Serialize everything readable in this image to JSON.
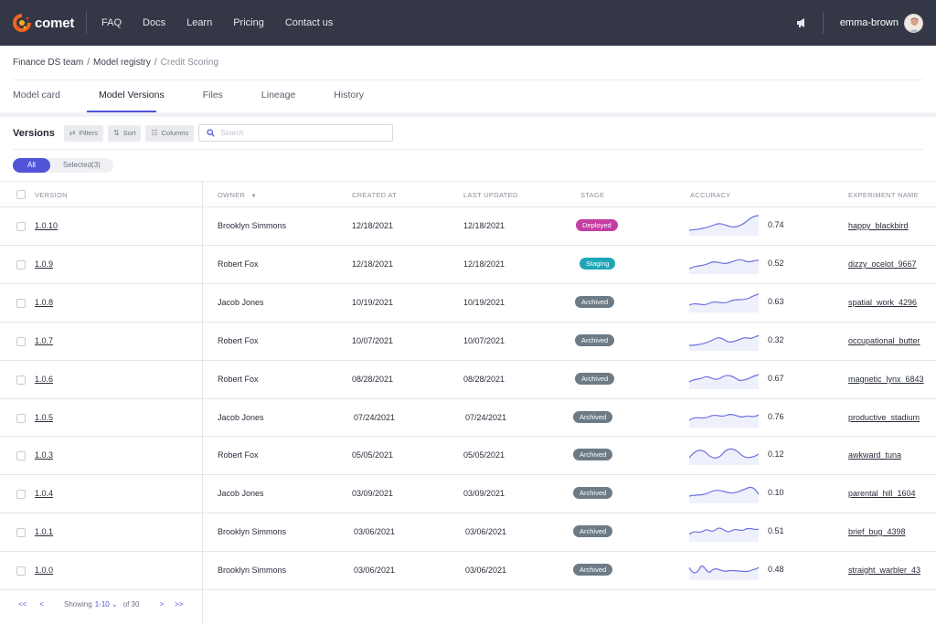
{
  "nav": {
    "logo": "comet",
    "links": [
      "FAQ",
      "Docs",
      "Learn",
      "Pricing",
      "Contact us"
    ],
    "username": "emma-brown"
  },
  "breadcrumb": {
    "team": "Finance DS team",
    "registry": "Model registry",
    "current": "Credit Scoring",
    "sep1": "/",
    "sep2": "/"
  },
  "tabs": [
    "Model card",
    "Model Versions",
    "Files",
    "Lineage",
    "History"
  ],
  "toolbar": {
    "title": "Versions",
    "filters": "Filters",
    "sort": "Sort",
    "columns": "Columns",
    "search_placeholder": "Search"
  },
  "pills": {
    "all": "All",
    "selected": "Selected(3)"
  },
  "columns": [
    "VERSION",
    "OWNER",
    "CREATED AT",
    "LAST UPDATED",
    "STAGE",
    "ACCURACY",
    "EXPERIMENT NAME"
  ],
  "colors": {
    "deployed": "#c53ea3",
    "staging": "#1ea6b8",
    "archived": "#6d7b86",
    "accent": "#5055d8"
  },
  "rows": [
    {
      "version": "1.0.10",
      "owner": "Brooklyn Simmons",
      "created": "12/18/2021",
      "updated": "12/18/2021",
      "stage": "Deployed",
      "accuracy": "0.74",
      "experiment": "happy_blackbird"
    },
    {
      "version": "1.0.9",
      "owner": "Robert Fox",
      "created": "12/18/2021",
      "updated": "12/18/2021",
      "stage": "Staging",
      "accuracy": "0.52",
      "experiment": "dizzy_ocelot_9667"
    },
    {
      "version": "1.0.8",
      "owner": "Jacob Jones",
      "created": "10/19/2021",
      "updated": "10/19/2021",
      "stage": "Archived",
      "accuracy": "0.63",
      "experiment": "spatial_work_4296"
    },
    {
      "version": "1.0.7",
      "owner": "Robert Fox",
      "created": "10/07/2021",
      "updated": "10/07/2021",
      "stage": "Archived",
      "accuracy": "0.32",
      "experiment": "occupational_butter"
    },
    {
      "version": "1.0.6",
      "owner": "Robert Fox",
      "created": "08/28/2021",
      "updated": "08/28/2021",
      "stage": "Archived",
      "accuracy": "0.67",
      "experiment": "magnetic_lynx_6843"
    },
    {
      "version": "1.0.5",
      "owner": "Jacob Jones",
      "created": "07/24/2021",
      "updated": "07/24/2021",
      "stage": "Archived",
      "accuracy": "0.76",
      "experiment": "productive_stadium"
    },
    {
      "version": "1.0.3",
      "owner": "Robert Fox",
      "created": "05/05/2021",
      "updated": "05/05/2021",
      "stage": "Archived",
      "accuracy": "0.12",
      "experiment": "awkward_tuna"
    },
    {
      "version": "1.0.4",
      "owner": "Jacob Jones",
      "created": "03/09/2021",
      "updated": "03/09/2021",
      "stage": "Archived",
      "accuracy": "0.10",
      "experiment": "parental_hill_1604"
    },
    {
      "version": "1.0.1",
      "owner": "Brooklyn Simmons",
      "created": "03/06/2021",
      "updated": "03/06/2021",
      "stage": "Archived",
      "accuracy": "0.51",
      "experiment": "brief_bug_4398"
    },
    {
      "version": "1.0.0",
      "owner": "Brooklyn Simmons",
      "created": "03/06/2021",
      "updated": "03/06/2021",
      "stage": "Archived",
      "accuracy": "0.48",
      "experiment": "straight_warbler_43"
    }
  ],
  "pagination": {
    "first": "<<",
    "prev": "<",
    "showing": "Showing",
    "range": "1-10",
    "of": "of 30",
    "next": ">",
    "last": ">>"
  }
}
